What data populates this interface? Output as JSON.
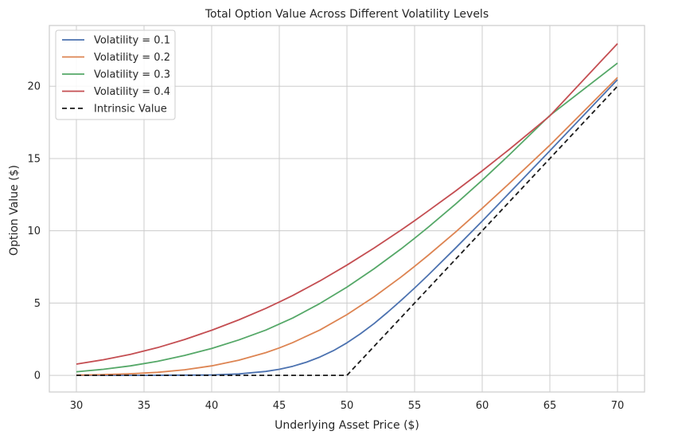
{
  "chart_data": {
    "type": "line",
    "title": "Total Option Value Across Different Volatility Levels",
    "xlabel": "Underlying Asset Price ($)",
    "ylabel": "Option Value ($)",
    "xlim": [
      28,
      72
    ],
    "ylim": [
      -1.15,
      24.2
    ],
    "xticks": [
      "30",
      "35",
      "40",
      "45",
      "50",
      "55",
      "60",
      "65",
      "70"
    ],
    "yticks": [
      "0",
      "5",
      "10",
      "15",
      "20"
    ],
    "grid": true,
    "legend_position": "top-left",
    "series": [
      {
        "name": "Volatility = 0.1",
        "color": "#4c72b0",
        "dashed": false,
        "x": [
          30,
          35,
          40,
          42,
          44,
          45,
          46,
          47,
          48,
          49,
          50,
          51,
          52,
          53,
          54,
          55,
          56,
          58,
          60,
          65,
          70
        ],
        "y": [
          0.0,
          0.0,
          0.03,
          0.1,
          0.27,
          0.42,
          0.63,
          0.91,
          1.27,
          1.71,
          2.25,
          2.88,
          3.58,
          4.36,
          5.18,
          6.04,
          6.93,
          8.78,
          10.67,
          15.53,
          20.45
        ]
      },
      {
        "name": "Volatility = 0.2",
        "color": "#dd8452",
        "dashed": false,
        "x": [
          30,
          32,
          34,
          36,
          38,
          40,
          42,
          44,
          45,
          46,
          48,
          50,
          52,
          54,
          55,
          56,
          58,
          60,
          62,
          65,
          70
        ],
        "y": [
          0.02,
          0.05,
          0.11,
          0.21,
          0.39,
          0.66,
          1.05,
          1.57,
          1.9,
          2.27,
          3.14,
          4.2,
          5.43,
          6.8,
          7.54,
          8.3,
          9.89,
          11.56,
          13.28,
          15.92,
          20.6
        ]
      },
      {
        "name": "Volatility = 0.3",
        "color": "#55a868",
        "dashed": false,
        "x": [
          30,
          32,
          34,
          36,
          38,
          40,
          42,
          44,
          45,
          46,
          48,
          50,
          52,
          54,
          55,
          56,
          58,
          60,
          62,
          65,
          70
        ],
        "y": [
          0.25,
          0.42,
          0.66,
          0.97,
          1.38,
          1.86,
          2.45,
          3.13,
          3.55,
          3.97,
          4.97,
          6.1,
          7.37,
          8.75,
          9.48,
          10.24,
          11.82,
          13.5,
          15.25,
          17.98,
          21.6
        ]
      },
      {
        "name": "Volatility = 0.4",
        "color": "#c44e52",
        "dashed": false,
        "x": [
          30,
          32,
          34,
          36,
          38,
          40,
          42,
          44,
          45,
          46,
          48,
          50,
          52,
          54,
          55,
          56,
          58,
          60,
          62,
          65,
          70
        ],
        "y": [
          0.78,
          1.08,
          1.45,
          1.92,
          2.48,
          3.12,
          3.84,
          4.63,
          5.08,
          5.53,
          6.53,
          7.63,
          8.8,
          10.05,
          10.7,
          11.37,
          12.73,
          14.15,
          15.63,
          17.95,
          22.95
        ]
      },
      {
        "name": "Intrinsic Value",
        "color": "#1a1a1a",
        "dashed": true,
        "x": [
          30,
          50,
          70
        ],
        "y": [
          0,
          0,
          20
        ]
      }
    ]
  }
}
